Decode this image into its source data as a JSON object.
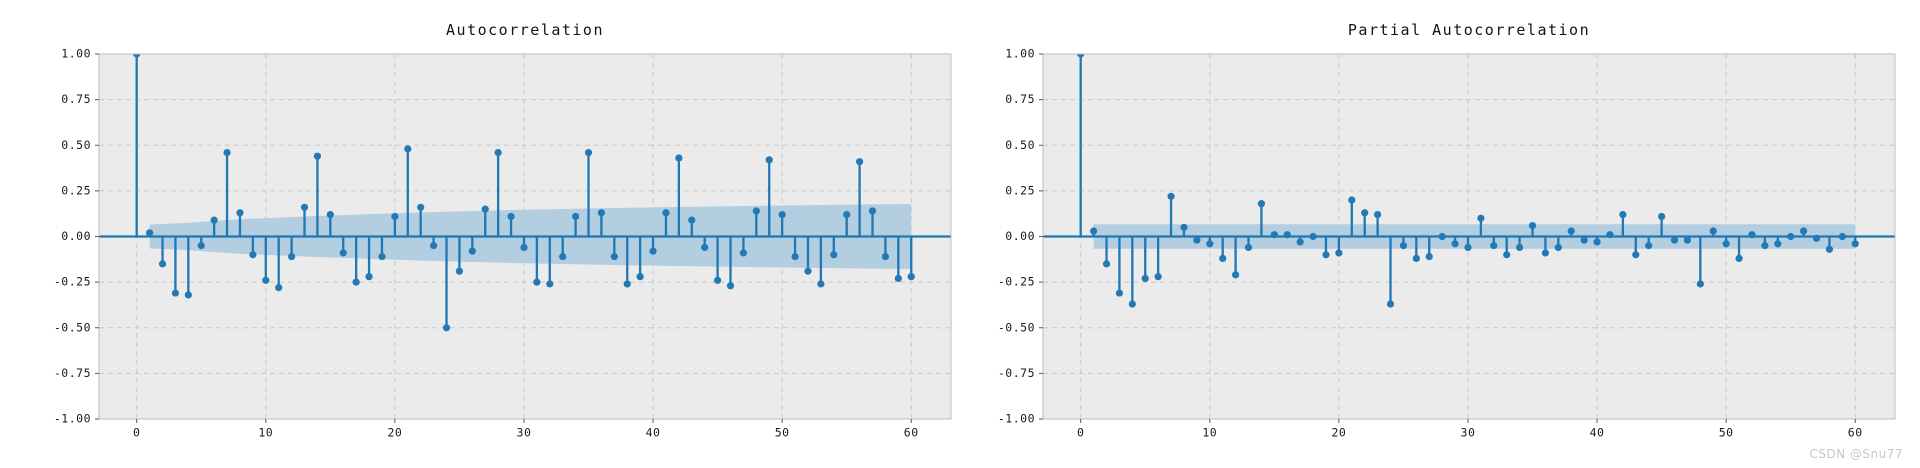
{
  "figure": {
    "watermark": "CSDN @Snu77"
  },
  "colors": {
    "stem": "#1f77b4",
    "marker": "#2379b5",
    "band": "#b3cde1",
    "plot_bg": "#ebebeb",
    "grid": "#c9c9c9",
    "spine": "#bdbdbd",
    "tick_mark": "#555555",
    "tick_text": "#1a1a1a",
    "title_text": "#141414",
    "watermark_text": "#c6c6c6"
  },
  "chart_data": [
    {
      "id": "acf",
      "type": "stem",
      "title": "Autocorrelation",
      "x_start": 0,
      "n_lags": 60,
      "values": [
        1.0,
        0.02,
        -0.15,
        -0.31,
        -0.32,
        -0.05,
        0.09,
        0.46,
        0.13,
        -0.1,
        -0.24,
        -0.28,
        -0.11,
        0.16,
        0.44,
        0.12,
        -0.09,
        -0.25,
        -0.22,
        -0.11,
        0.11,
        0.48,
        0.16,
        -0.05,
        -0.5,
        -0.19,
        -0.08,
        0.15,
        0.46,
        0.11,
        -0.06,
        -0.25,
        -0.26,
        -0.11,
        0.11,
        0.46,
        0.13,
        -0.11,
        -0.26,
        -0.22,
        -0.08,
        0.13,
        0.43,
        0.09,
        -0.06,
        -0.24,
        -0.27,
        -0.09,
        0.14,
        0.42,
        0.12,
        -0.11,
        -0.19,
        -0.26,
        -0.1,
        0.12,
        0.41,
        0.14,
        -0.11,
        -0.23,
        -0.22
      ],
      "conf_band": {
        "style": "expanding",
        "halfwidth_breakpoints": [
          [
            1,
            0.065
          ],
          [
            4,
            0.075
          ],
          [
            8,
            0.095
          ],
          [
            15,
            0.115
          ],
          [
            22,
            0.132
          ],
          [
            29,
            0.145
          ],
          [
            36,
            0.155
          ],
          [
            43,
            0.163
          ],
          [
            50,
            0.17
          ],
          [
            57,
            0.176
          ],
          [
            60,
            0.178
          ]
        ],
        "from_lag": 1,
        "to_lag": 60
      },
      "xlim": [
        -2.92,
        63.08
      ],
      "ylim": [
        -1,
        1
      ],
      "grid": true,
      "xticks": {
        "values": [
          0,
          10,
          20,
          30,
          40,
          50,
          60
        ],
        "labels": [
          "0",
          "10",
          "20",
          "30",
          "40",
          "50",
          "60"
        ]
      },
      "yticks": {
        "values": [
          1.0,
          0.75,
          0.5,
          0.25,
          0.0,
          -0.25,
          -0.5,
          -0.75,
          -1.0
        ],
        "labels": [
          "1.00",
          "0.75",
          "0.50",
          "0.25",
          "0.00",
          "-0.25",
          "-0.50",
          "-0.75",
          "-1.00"
        ]
      }
    },
    {
      "id": "pacf",
      "type": "stem",
      "title": "Partial Autocorrelation",
      "x_start": 0,
      "n_lags": 60,
      "values": [
        1.0,
        0.03,
        -0.15,
        -0.31,
        -0.37,
        -0.23,
        -0.22,
        0.22,
        0.05,
        -0.02,
        -0.04,
        -0.12,
        -0.21,
        -0.06,
        0.18,
        0.01,
        0.01,
        -0.03,
        0.0,
        -0.1,
        -0.09,
        0.2,
        0.13,
        0.12,
        -0.37,
        -0.05,
        -0.12,
        -0.11,
        0.0,
        -0.04,
        -0.06,
        0.1,
        -0.05,
        -0.1,
        -0.06,
        0.06,
        -0.09,
        -0.06,
        0.03,
        -0.02,
        -0.03,
        0.01,
        0.12,
        -0.1,
        -0.05,
        0.11,
        -0.02,
        -0.02,
        -0.26,
        0.03,
        -0.04,
        -0.12,
        0.01,
        -0.05,
        -0.04,
        0.0,
        0.03,
        -0.01,
        -0.07,
        0.0,
        -0.04
      ],
      "conf_band": {
        "style": "constant",
        "halfwidth_breakpoints": [
          [
            1,
            0.067
          ],
          [
            60,
            0.067
          ]
        ],
        "from_lag": 1,
        "to_lag": 60
      },
      "xlim": [
        -2.92,
        63.08
      ],
      "ylim": [
        -1,
        1
      ],
      "grid": true,
      "xticks": {
        "values": [
          0,
          10,
          20,
          30,
          40,
          50,
          60
        ],
        "labels": [
          "0",
          "10",
          "20",
          "30",
          "40",
          "50",
          "60"
        ]
      },
      "yticks": {
        "values": [
          1.0,
          0.75,
          0.5,
          0.25,
          0.0,
          -0.25,
          -0.5,
          -0.75,
          -1.0
        ],
        "labels": [
          "1.00",
          "0.75",
          "0.50",
          "0.25",
          "0.00",
          "-0.25",
          "-0.50",
          "-0.75",
          "-1.00"
        ]
      }
    }
  ]
}
